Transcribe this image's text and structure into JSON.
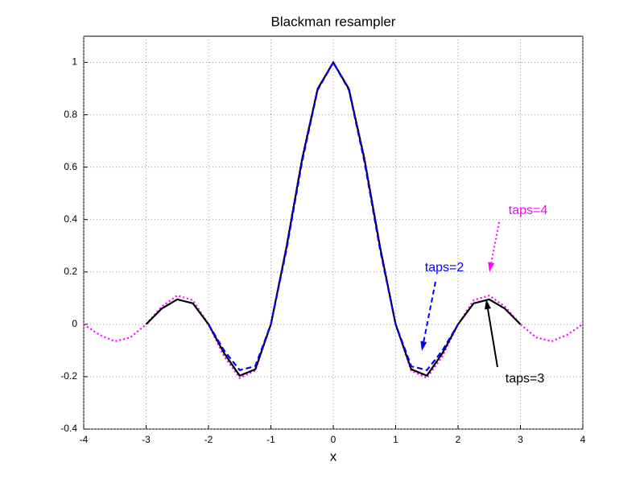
{
  "chart_data": {
    "type": "line",
    "title": "Blackman resampler",
    "x_label": "x",
    "x": [
      -4,
      -3.75,
      -3.5,
      -3.25,
      -3,
      -2.75,
      -2.5,
      -2.25,
      -2,
      -1.75,
      -1.5,
      -1.25,
      -1,
      -0.75,
      -0.5,
      -0.25,
      0,
      0.25,
      0.5,
      0.75,
      1,
      1.25,
      1.5,
      1.75,
      2,
      2.25,
      2.5,
      2.75,
      3,
      3.25,
      3.5,
      3.75,
      4
    ],
    "series": [
      {
        "name": "taps=2",
        "color": "#0000ff",
        "linestyle": "dashed",
        "values": [
          null,
          null,
          null,
          null,
          null,
          null,
          null,
          null,
          0,
          -0.1,
          -0.175,
          -0.16,
          0,
          0.285,
          0.62,
          0.895,
          1,
          0.895,
          0.62,
          0.285,
          0,
          -0.16,
          -0.175,
          -0.1,
          0,
          null,
          null,
          null,
          null,
          null,
          null,
          null,
          null
        ]
      },
      {
        "name": "taps=3",
        "color": "#000000",
        "linestyle": "solid",
        "values": [
          null,
          null,
          null,
          null,
          0,
          0.06,
          0.095,
          0.08,
          0,
          -0.11,
          -0.196,
          -0.172,
          0,
          0.294,
          0.63,
          0.899,
          1,
          0.899,
          0.63,
          0.294,
          0,
          -0.172,
          -0.196,
          -0.11,
          0,
          0.08,
          0.095,
          0.06,
          0,
          null,
          null,
          null,
          null
        ]
      },
      {
        "name": "taps=4",
        "color": "#ff00ff",
        "linestyle": "dotted",
        "values": [
          0,
          -0.04,
          -0.065,
          -0.05,
          0,
          0.068,
          0.11,
          0.092,
          0,
          -0.122,
          -0.205,
          -0.177,
          0,
          0.298,
          0.635,
          0.9,
          1,
          0.9,
          0.635,
          0.298,
          0,
          -0.177,
          -0.205,
          -0.122,
          0,
          0.092,
          0.11,
          0.068,
          0,
          -0.05,
          -0.065,
          -0.04,
          0
        ]
      }
    ],
    "annotations": [
      {
        "text": "taps=4",
        "color": "#ff00ff"
      },
      {
        "text": "taps=2",
        "color": "#0000ff"
      },
      {
        "text": "taps=3",
        "color": "#000000"
      }
    ],
    "xlim": [
      -4,
      4
    ],
    "xticks": [
      -4,
      -3,
      -2,
      -1,
      0,
      1,
      2,
      3,
      4
    ],
    "ylim": [
      -0.4,
      1.1
    ],
    "yticks": [
      -0.4,
      -0.2,
      0,
      0.2,
      0.4,
      0.6,
      0.8,
      1
    ],
    "grid": true
  }
}
